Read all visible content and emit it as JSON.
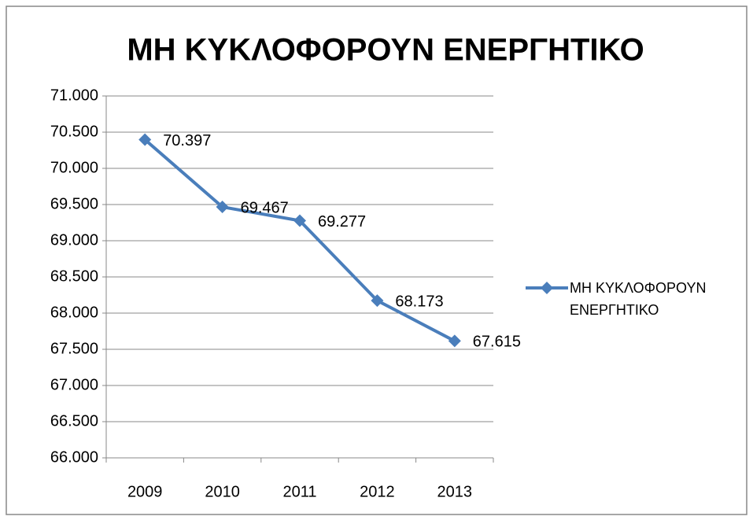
{
  "chart_data": {
    "type": "line",
    "title": "ΜΗ ΚΥΚΛΟΦΟΡΟΥΝ ΕΝΕΡΓΗΤΙΚΟ",
    "categories": [
      "2009",
      "2010",
      "2011",
      "2012",
      "2013"
    ],
    "series": [
      {
        "name": "ΜΗ ΚΥΚΛΟΦΟΡΟΥΝ ΕΝΕΡΓΗΤΙΚΟ",
        "color": "#4a7ebb",
        "values": [
          70397,
          69467,
          69277,
          68173,
          67615
        ],
        "value_labels": [
          "70.397",
          "69.467",
          "69.277",
          "68.173",
          "67.615"
        ]
      }
    ],
    "ylim": [
      66000,
      71000
    ],
    "yticks": [
      {
        "value": 66000,
        "label": "66.000"
      },
      {
        "value": 66500,
        "label": "66.500"
      },
      {
        "value": 67000,
        "label": "67.000"
      },
      {
        "value": 67500,
        "label": "67.500"
      },
      {
        "value": 68000,
        "label": "68.000"
      },
      {
        "value": 68500,
        "label": "68.500"
      },
      {
        "value": 69000,
        "label": "69.000"
      },
      {
        "value": 69500,
        "label": "69.500"
      },
      {
        "value": 70000,
        "label": "70.000"
      },
      {
        "value": 70500,
        "label": "70.500"
      },
      {
        "value": 71000,
        "label": "71.000"
      }
    ],
    "grid": true,
    "legend": "right"
  }
}
